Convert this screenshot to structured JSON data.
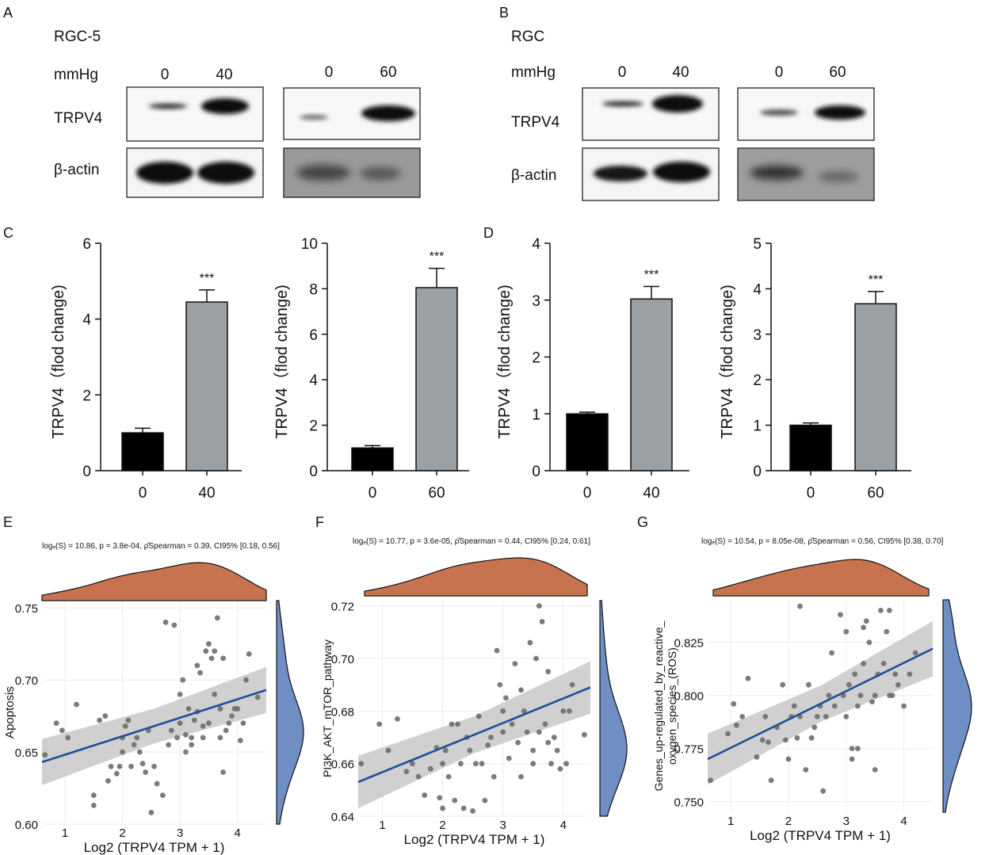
{
  "panels": {
    "A": {
      "letter": "A",
      "cell_label": "RGC-5",
      "pressure_label": "mmHg",
      "protein_label": "TRPV4",
      "control_label": "β-actin",
      "pair1": [
        "0",
        "40"
      ],
      "pair2": [
        "0",
        "60"
      ]
    },
    "B": {
      "letter": "B",
      "cell_label": "RGC",
      "pressure_label": "mmHg",
      "protein_label": "TRPV4",
      "control_label": "β-actin",
      "pair1": [
        "0",
        "40"
      ],
      "pair2": [
        "0",
        "60"
      ]
    },
    "C": {
      "letter": "C"
    },
    "D": {
      "letter": "D"
    },
    "E": {
      "letter": "E",
      "stats": "logₑ(S) = 10.86, p = 3.8e-04, ρ̂Spearman = 0.39, CI95% [0.18, 0.56]"
    },
    "F": {
      "letter": "F",
      "stats": "logₑ(S) = 10.77, p = 3.6e-05, ρ̂Spearman = 0.44, CI95% [0.24, 0.61]"
    },
    "G": {
      "letter": "G",
      "stats": "logₑ(S) = 10.54, p = 8.05e-08, ρ̂Spearman = 0.56, CI95% [0.38, 0.70]"
    }
  },
  "colors": {
    "bar_control": "#000000",
    "bar_treated": "#9aa0a3",
    "point": "#6e6e68",
    "fit_line": "#1f4e9c",
    "ci_band": "#c8c8c8",
    "density_x": "#c8734f",
    "density_y": "#6f8fc4"
  },
  "chart_data": [
    {
      "id": "C1",
      "type": "bar",
      "categories": [
        "0",
        "40"
      ],
      "values": [
        1.0,
        4.45
      ],
      "errors": [
        0.12,
        0.32
      ],
      "significance": "***",
      "ylabel": "TRPV4（flod change)",
      "ylim": [
        0,
        6
      ],
      "yticks": [
        0,
        2,
        4,
        6
      ]
    },
    {
      "id": "C2",
      "type": "bar",
      "categories": [
        "0",
        "60"
      ],
      "values": [
        1.0,
        8.05
      ],
      "errors": [
        0.1,
        0.85
      ],
      "significance": "***",
      "ylabel": "TRPV4（flod change)",
      "ylim": [
        0,
        10
      ],
      "yticks": [
        0,
        2,
        4,
        6,
        8,
        10
      ]
    },
    {
      "id": "D1",
      "type": "bar",
      "categories": [
        "0",
        "40"
      ],
      "values": [
        1.0,
        3.02
      ],
      "errors": [
        0.03,
        0.22
      ],
      "significance": "***",
      "ylabel": "TRPV4（flod change)",
      "ylim": [
        0,
        4
      ],
      "yticks": [
        0,
        1,
        2,
        3,
        4
      ]
    },
    {
      "id": "D2",
      "type": "bar",
      "categories": [
        "0",
        "60"
      ],
      "values": [
        1.0,
        3.67
      ],
      "errors": [
        0.05,
        0.27
      ],
      "significance": "***",
      "ylabel": "TRPV4（flod change)",
      "ylim": [
        0,
        5
      ],
      "yticks": [
        0,
        1,
        2,
        3,
        4,
        5
      ]
    },
    {
      "id": "E",
      "type": "scatter",
      "xlabel": "Log2 (TRPV4 TPM + 1)",
      "ylabel": "Apoptosis",
      "xlim": [
        0.6,
        4.5
      ],
      "ylim": [
        0.6,
        0.755
      ],
      "xticks": [
        1,
        2,
        3,
        4
      ],
      "yticks": [
        0.6,
        0.65,
        0.7,
        0.75
      ],
      "ytick_labels": [
        "0.60",
        "0.65",
        "0.70",
        "0.75"
      ],
      "fit": {
        "x": [
          0.6,
          4.5
        ],
        "y": [
          0.643,
          0.693
        ]
      },
      "ci": {
        "x0": [
          0.627,
          0.659
        ],
        "x1": [
          0.677,
          0.709
        ],
        "mid": 0.004
      },
      "points": [
        [
          0.65,
          0.648
        ],
        [
          0.85,
          0.67
        ],
        [
          0.95,
          0.665
        ],
        [
          1.05,
          0.66
        ],
        [
          1.2,
          0.683
        ],
        [
          1.5,
          0.62
        ],
        [
          1.5,
          0.613
        ],
        [
          1.6,
          0.672
        ],
        [
          1.7,
          0.675
        ],
        [
          1.75,
          0.63
        ],
        [
          1.8,
          0.64
        ],
        [
          1.9,
          0.635
        ],
        [
          1.95,
          0.64
        ],
        [
          2.0,
          0.65
        ],
        [
          2.0,
          0.66
        ],
        [
          2.05,
          0.668
        ],
        [
          2.1,
          0.672
        ],
        [
          2.15,
          0.64
        ],
        [
          2.2,
          0.655
        ],
        [
          2.25,
          0.66
        ],
        [
          2.3,
          0.65
        ],
        [
          2.35,
          0.642
        ],
        [
          2.4,
          0.636
        ],
        [
          2.45,
          0.665
        ],
        [
          2.5,
          0.608
        ],
        [
          2.55,
          0.64
        ],
        [
          2.6,
          0.628
        ],
        [
          2.7,
          0.62
        ],
        [
          2.75,
          0.74
        ],
        [
          2.8,
          0.655
        ],
        [
          2.85,
          0.665
        ],
        [
          2.9,
          0.738
        ],
        [
          2.95,
          0.66
        ],
        [
          3.0,
          0.67
        ],
        [
          3.0,
          0.69
        ],
        [
          3.05,
          0.7
        ],
        [
          3.1,
          0.662
        ],
        [
          3.1,
          0.65
        ],
        [
          3.15,
          0.68
        ],
        [
          3.2,
          0.66
        ],
        [
          3.2,
          0.655
        ],
        [
          3.25,
          0.672
        ],
        [
          3.3,
          0.678
        ],
        [
          3.3,
          0.71
        ],
        [
          3.35,
          0.705
        ],
        [
          3.4,
          0.668
        ],
        [
          3.4,
          0.66
        ],
        [
          3.45,
          0.72
        ],
        [
          3.5,
          0.725
        ],
        [
          3.5,
          0.67
        ],
        [
          3.55,
          0.715
        ],
        [
          3.6,
          0.72
        ],
        [
          3.6,
          0.69
        ],
        [
          3.65,
          0.743
        ],
        [
          3.7,
          0.66
        ],
        [
          3.7,
          0.68
        ],
        [
          3.75,
          0.715
        ],
        [
          3.75,
          0.636
        ],
        [
          3.8,
          0.665
        ],
        [
          3.85,
          0.67
        ],
        [
          3.9,
          0.675
        ],
        [
          3.95,
          0.68
        ],
        [
          4.0,
          0.68
        ],
        [
          4.05,
          0.658
        ],
        [
          4.1,
          0.67
        ],
        [
          4.15,
          0.7
        ],
        [
          4.2,
          0.718
        ],
        [
          4.35,
          0.688
        ]
      ]
    },
    {
      "id": "F",
      "type": "scatter",
      "xlabel": "Log2 (TRPV4 TPM + 1)",
      "ylabel": "PI3K_AKT_mTOR_pathway",
      "xlim": [
        0.6,
        4.45
      ],
      "ylim": [
        0.64,
        0.722
      ],
      "xticks": [
        1,
        2,
        3,
        4
      ],
      "yticks": [
        0.64,
        0.66,
        0.68,
        0.7,
        0.72
      ],
      "ytick_labels": [
        "0.64",
        "0.66",
        "0.68",
        "0.70",
        "0.72"
      ],
      "fit": {
        "x": [
          0.6,
          4.45
        ],
        "y": [
          0.653,
          0.689
        ]
      },
      "ci": {
        "x0": [
          0.643,
          0.663
        ],
        "x1": [
          0.679,
          0.699
        ],
        "mid": 0.003
      },
      "points": [
        [
          0.65,
          0.66
        ],
        [
          0.95,
          0.675
        ],
        [
          1.1,
          0.665
        ],
        [
          1.25,
          0.677
        ],
        [
          1.4,
          0.657
        ],
        [
          1.5,
          0.66
        ],
        [
          1.6,
          0.655
        ],
        [
          1.7,
          0.648
        ],
        [
          1.8,
          0.658
        ],
        [
          1.9,
          0.666
        ],
        [
          1.95,
          0.647
        ],
        [
          2.0,
          0.66
        ],
        [
          2.0,
          0.643
        ],
        [
          2.05,
          0.665
        ],
        [
          2.1,
          0.655
        ],
        [
          2.15,
          0.675
        ],
        [
          2.2,
          0.646
        ],
        [
          2.25,
          0.675
        ],
        [
          2.3,
          0.66
        ],
        [
          2.35,
          0.643
        ],
        [
          2.4,
          0.67
        ],
        [
          2.45,
          0.665
        ],
        [
          2.5,
          0.642
        ],
        [
          2.55,
          0.66
        ],
        [
          2.6,
          0.678
        ],
        [
          2.65,
          0.66
        ],
        [
          2.7,
          0.646
        ],
        [
          2.75,
          0.667
        ],
        [
          2.8,
          0.67
        ],
        [
          2.85,
          0.655
        ],
        [
          2.9,
          0.703
        ],
        [
          2.95,
          0.69
        ],
        [
          3.0,
          0.68
        ],
        [
          3.0,
          0.672
        ],
        [
          3.05,
          0.685
        ],
        [
          3.1,
          0.662
        ],
        [
          3.15,
          0.675
        ],
        [
          3.2,
          0.698
        ],
        [
          3.25,
          0.668
        ],
        [
          3.3,
          0.688
        ],
        [
          3.3,
          0.655
        ],
        [
          3.35,
          0.68
        ],
        [
          3.4,
          0.672
        ],
        [
          3.45,
          0.706
        ],
        [
          3.5,
          0.66
        ],
        [
          3.5,
          0.665
        ],
        [
          3.55,
          0.7
        ],
        [
          3.6,
          0.72
        ],
        [
          3.6,
          0.672
        ],
        [
          3.65,
          0.714
        ],
        [
          3.7,
          0.675
        ],
        [
          3.75,
          0.695
        ],
        [
          3.75,
          0.668
        ],
        [
          3.8,
          0.66
        ],
        [
          3.85,
          0.67
        ],
        [
          3.9,
          0.665
        ],
        [
          3.95,
          0.658
        ],
        [
          4.0,
          0.68
        ],
        [
          4.05,
          0.66
        ],
        [
          4.1,
          0.68
        ],
        [
          4.15,
          0.69
        ],
        [
          4.35,
          0.671
        ]
      ]
    },
    {
      "id": "G",
      "type": "scatter",
      "xlabel": "Log2 (TRPV4 TPM + 1)",
      "ylabel": "Genes_up-regulated_by_reactive_oxygen_species_(ROS)",
      "xlim": [
        0.6,
        4.5
      ],
      "ylim": [
        0.745,
        0.845
      ],
      "xticks": [
        1,
        2,
        3,
        4
      ],
      "yticks": [
        0.75,
        0.775,
        0.8,
        0.825
      ],
      "ytick_labels": [
        "0.750",
        "0.775",
        "0.800",
        "0.825"
      ],
      "fit": {
        "x": [
          0.6,
          4.5
        ],
        "y": [
          0.77,
          0.822
        ]
      },
      "ci": {
        "x0": [
          0.758,
          0.782
        ],
        "x1": [
          0.809,
          0.835
        ],
        "mid": 0.004
      },
      "points": [
        [
          0.65,
          0.76
        ],
        [
          0.95,
          0.782
        ],
        [
          1.05,
          0.796
        ],
        [
          1.1,
          0.786
        ],
        [
          1.2,
          0.79
        ],
        [
          1.3,
          0.808
        ],
        [
          1.45,
          0.771
        ],
        [
          1.55,
          0.779
        ],
        [
          1.6,
          0.79
        ],
        [
          1.65,
          0.778
        ],
        [
          1.7,
          0.76
        ],
        [
          1.8,
          0.785
        ],
        [
          1.9,
          0.805
        ],
        [
          1.95,
          0.779
        ],
        [
          2.0,
          0.77
        ],
        [
          2.05,
          0.79
        ],
        [
          2.1,
          0.795
        ],
        [
          2.15,
          0.78
        ],
        [
          2.2,
          0.79
        ],
        [
          2.2,
          0.842
        ],
        [
          2.3,
          0.765
        ],
        [
          2.35,
          0.805
        ],
        [
          2.4,
          0.78
        ],
        [
          2.45,
          0.785
        ],
        [
          2.5,
          0.79
        ],
        [
          2.55,
          0.795
        ],
        [
          2.6,
          0.755
        ],
        [
          2.65,
          0.79
        ],
        [
          2.7,
          0.8
        ],
        [
          2.75,
          0.82
        ],
        [
          2.8,
          0.795
        ],
        [
          2.9,
          0.838
        ],
        [
          2.95,
          0.8
        ],
        [
          3.0,
          0.83
        ],
        [
          3.0,
          0.79
        ],
        [
          3.05,
          0.805
        ],
        [
          3.1,
          0.775
        ],
        [
          3.1,
          0.77
        ],
        [
          3.15,
          0.81
        ],
        [
          3.2,
          0.775
        ],
        [
          3.2,
          0.795
        ],
        [
          3.25,
          0.8
        ],
        [
          3.3,
          0.832
        ],
        [
          3.3,
          0.815
        ],
        [
          3.35,
          0.835
        ],
        [
          3.4,
          0.825
        ],
        [
          3.45,
          0.797
        ],
        [
          3.5,
          0.8
        ],
        [
          3.5,
          0.765
        ],
        [
          3.55,
          0.81
        ],
        [
          3.6,
          0.84
        ],
        [
          3.65,
          0.815
        ],
        [
          3.7,
          0.83
        ],
        [
          3.75,
          0.8
        ],
        [
          3.75,
          0.84
        ],
        [
          3.8,
          0.8
        ],
        [
          3.85,
          0.81
        ],
        [
          3.9,
          0.805
        ],
        [
          4.0,
          0.795
        ],
        [
          4.1,
          0.81
        ],
        [
          4.2,
          0.82
        ]
      ]
    }
  ]
}
